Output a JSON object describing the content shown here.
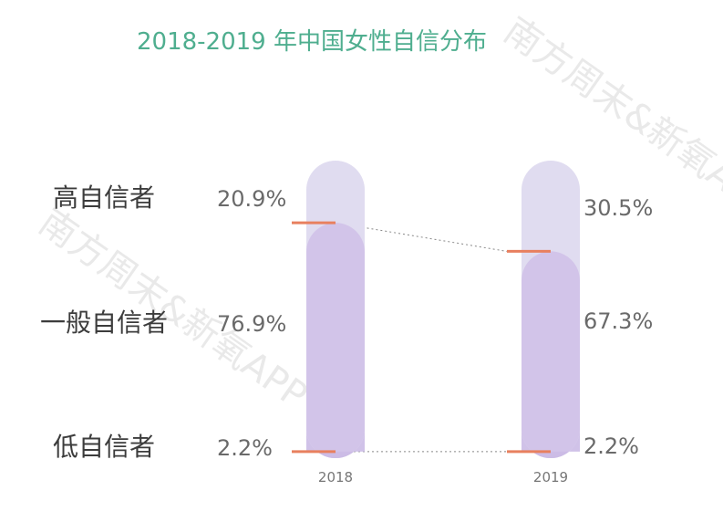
{
  "chart_data": {
    "type": "bar",
    "title": "2018-2019 年中国女性自信分布",
    "watermark": "南方周末&新氧APP",
    "categories": [
      "2018",
      "2019"
    ],
    "segments": [
      "高自信者",
      "一般自信者",
      "低自信者"
    ],
    "series": [
      {
        "name": "高自信者",
        "values": [
          20.9,
          30.5
        ],
        "labels": [
          "20.9%",
          "30.5%"
        ]
      },
      {
        "name": "一般自信者",
        "values": [
          76.9,
          67.3
        ],
        "labels": [
          "76.9%",
          "67.3%"
        ]
      },
      {
        "name": "低自信者",
        "values": [
          2.2,
          2.2
        ],
        "labels": [
          "2.2%",
          "2.2%"
        ]
      }
    ],
    "colors": {
      "high": "#e0dcf0",
      "mid": "#d2c4e9",
      "low": "#cbbbe6",
      "marker": "#e8805f",
      "title": "#4fae8f",
      "connector": "#888888"
    }
  }
}
